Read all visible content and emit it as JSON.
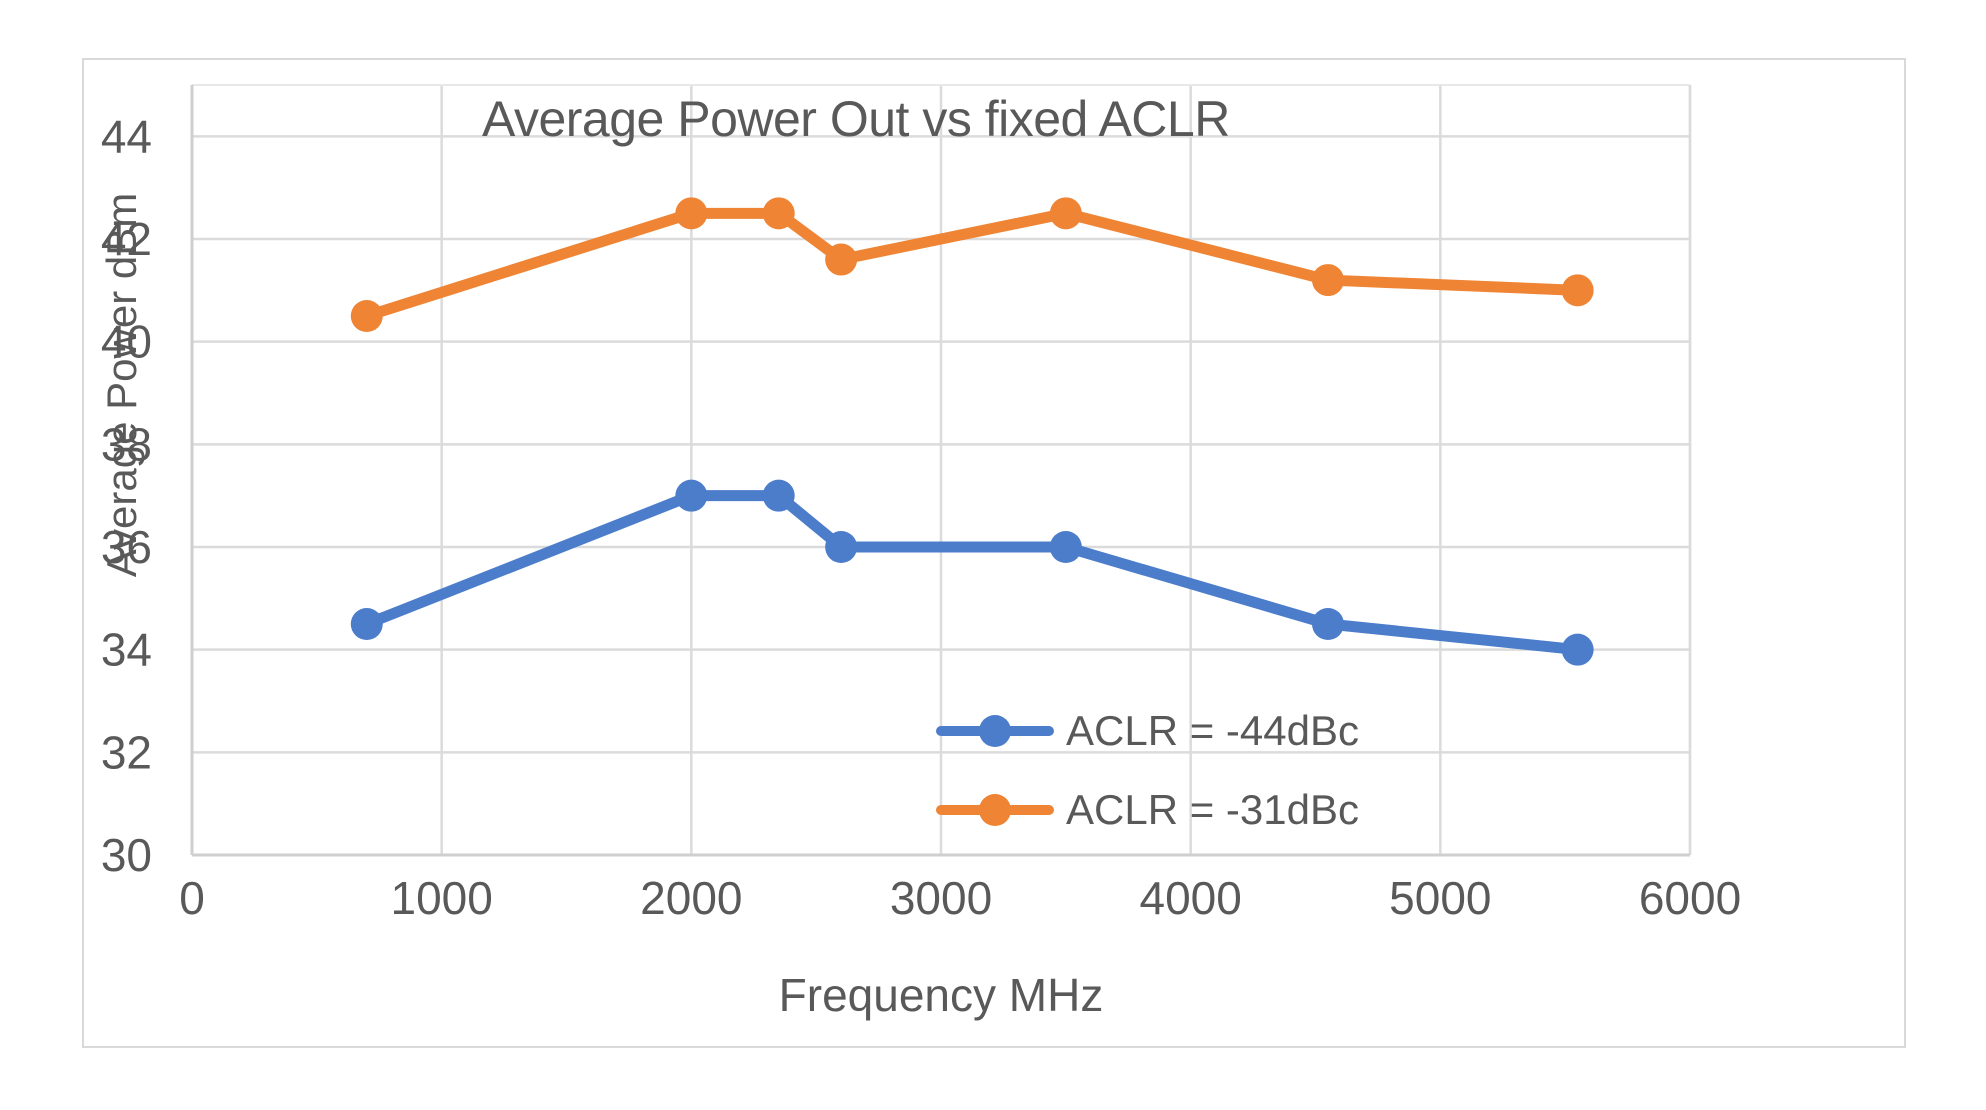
{
  "chart_data": {
    "type": "line",
    "title": "Average Power Out vs fixed ACLR",
    "xlabel": "Frequency MHz",
    "ylabel": "Average Power dBm",
    "x": [
      700,
      2000,
      2350,
      2600,
      3500,
      4550,
      5550
    ],
    "series": [
      {
        "name": "ACLR = -44dBc",
        "color": "#4c7dcb",
        "values": [
          34.5,
          37.0,
          37.0,
          36.0,
          36.0,
          34.5,
          34.0
        ]
      },
      {
        "name": "ACLR = -31dBc",
        "color": "#ee8434",
        "values": [
          40.5,
          42.5,
          42.5,
          41.6,
          42.5,
          41.2,
          41.0
        ]
      }
    ],
    "xlim": [
      0,
      6000
    ],
    "ylim": [
      30,
      45
    ],
    "xticks": [
      0,
      1000,
      2000,
      3000,
      4000,
      5000,
      6000
    ],
    "yticks": [
      30,
      32,
      34,
      36,
      38,
      40,
      42,
      44
    ],
    "grid": true,
    "legend_position": "inside-bottom-center",
    "gridline_color": "#dbdbdb",
    "axis_line_color": "#cfcfcf",
    "text_color": "#595959"
  }
}
